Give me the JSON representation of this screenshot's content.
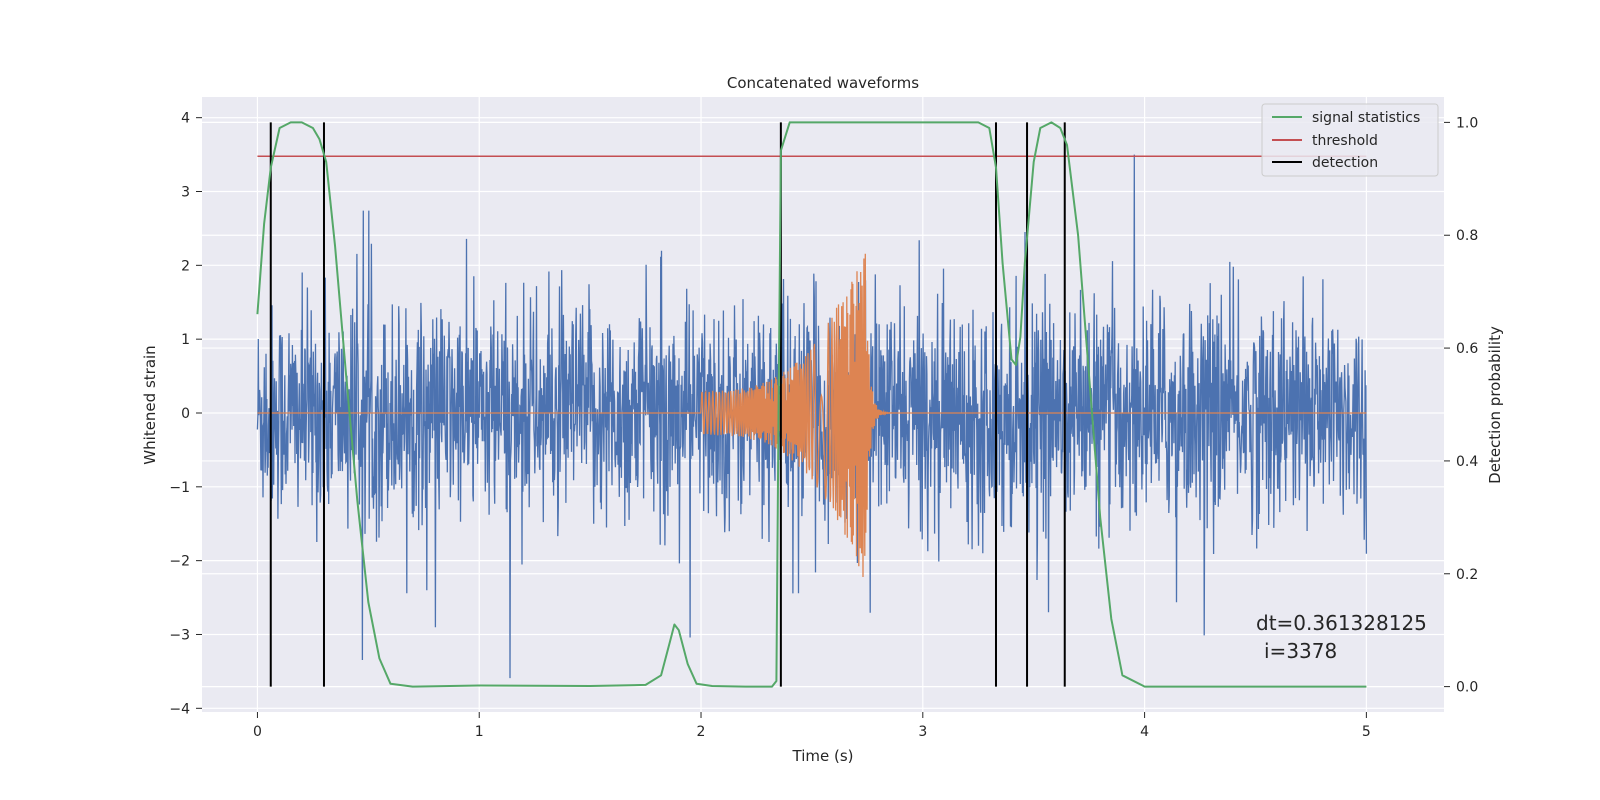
{
  "chart_data": {
    "type": "line",
    "title": "Concatenated waveforms",
    "xlabel": "Time (s)",
    "ylabel": "Whitened strain",
    "y2label": "Detection probability",
    "xlim": [
      -0.25,
      5.35
    ],
    "ylim": [
      -4.05,
      4.28
    ],
    "y2lim": [
      -0.045,
      1.045
    ],
    "xticks": [
      0,
      1,
      2,
      3,
      4,
      5
    ],
    "yticks": [
      -4,
      -3,
      -2,
      -1,
      0,
      1,
      2,
      3,
      4
    ],
    "y2ticks": [
      0.0,
      0.2,
      0.4,
      0.6,
      0.8,
      1.0
    ],
    "grid": true,
    "legend_position": "top-right",
    "colors": {
      "noise": "#4c72b0",
      "injection": "#dd8452",
      "signal_statistics": "#55a868",
      "threshold": "#c44e52",
      "detection": "#000000",
      "background": "#eaeaf2"
    },
    "series": [
      {
        "name": "signal statistics",
        "axis": "right",
        "x": [
          0.0,
          0.03,
          0.06,
          0.1,
          0.15,
          0.2,
          0.25,
          0.28,
          0.31,
          0.35,
          0.4,
          0.45,
          0.5,
          0.55,
          0.6,
          0.7,
          1.0,
          1.5,
          1.75,
          1.82,
          1.86,
          1.88,
          1.9,
          1.94,
          1.98,
          2.05,
          2.2,
          2.32,
          2.34,
          2.35,
          2.36,
          2.4,
          2.6,
          3.0,
          3.25,
          3.3,
          3.33,
          3.36,
          3.4,
          3.42,
          3.44,
          3.46,
          3.5,
          3.53,
          3.58,
          3.62,
          3.65,
          3.7,
          3.75,
          3.8,
          3.85,
          3.9,
          4.0,
          4.5,
          5.0
        ],
        "y": [
          0.66,
          0.82,
          0.92,
          0.99,
          1.0,
          1.0,
          0.99,
          0.97,
          0.93,
          0.78,
          0.55,
          0.33,
          0.15,
          0.05,
          0.005,
          0.0,
          0.002,
          0.001,
          0.003,
          0.02,
          0.08,
          0.11,
          0.1,
          0.04,
          0.005,
          0.001,
          0.0,
          0.0,
          0.01,
          0.5,
          0.95,
          1.0,
          1.0,
          1.0,
          1.0,
          0.99,
          0.92,
          0.75,
          0.58,
          0.57,
          0.62,
          0.75,
          0.93,
          0.99,
          1.0,
          0.99,
          0.96,
          0.8,
          0.55,
          0.3,
          0.12,
          0.02,
          0.0,
          0.0,
          0.0
        ]
      },
      {
        "name": "threshold",
        "axis": "right",
        "x": [
          0.0,
          5.0
        ],
        "y": [
          0.94,
          0.94
        ]
      },
      {
        "name": "detection",
        "axis": "right",
        "x_values": [
          0.06,
          0.3,
          2.36,
          3.33,
          3.47,
          3.64
        ],
        "y_range": [
          0.0,
          1.0
        ]
      },
      {
        "name": "",
        "axis": "left",
        "x_range": [
          0.0,
          5.0
        ],
        "n_samples": 2600,
        "rms": 0.72,
        "peak": 3.5,
        "note_hidden": false
      },
      {
        "name": "",
        "axis": "left",
        "chirp_start": 2.0,
        "chirp_end": 2.74,
        "amp_start": 0.3,
        "amp_peak": 2.3,
        "ringdown_end": 3.0
      }
    ],
    "annotations": [
      "dt=0.361328125",
      "i=3378"
    ]
  }
}
